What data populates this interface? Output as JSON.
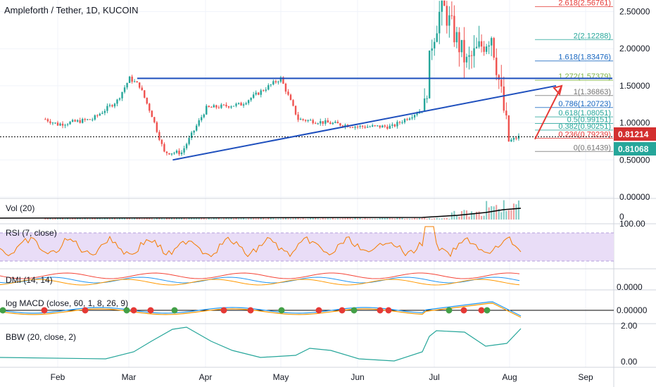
{
  "header": {
    "title": "Ampleforth / Tether, 1D, KUCOIN"
  },
  "colors": {
    "up": "#26a69a",
    "down": "#ef5350",
    "trendline": "#1e4fbd",
    "arrow": "#e53935",
    "price_badge_red": "#d32f2f",
    "price_badge_green": "#26a69a",
    "rsi_band": "#e9ddf7",
    "rsi_line": "#f57c00",
    "macd_line": "#2196f3",
    "signal_line": "#ff9800",
    "bbw_line": "#26a69a",
    "vol_ma": "#000000",
    "dmi_plus": "#2196f3",
    "dmi_minus": "#ff9800",
    "adx": "#f44336"
  },
  "price_badges": {
    "red": "0.81214",
    "green": "0.81068"
  },
  "chart_data": [
    {
      "type": "candlestick",
      "title": "Ampleforth / Tether, 1D, KUCOIN",
      "y_axis_ticks": [
        "2.50000",
        "2.00000",
        "1.50000",
        "1.00000",
        "0.50000",
        "0.00000"
      ],
      "ylim": [
        0.0,
        2.6
      ],
      "x_axis_ticks": [
        "Feb",
        "Mar",
        "Apr",
        "May",
        "Jun",
        "Jul",
        "Aug",
        "Sep"
      ],
      "series_points_approx": [
        {
          "t": "Jan 15",
          "close": 1.05
        },
        {
          "t": "Feb 1",
          "close": 0.98
        },
        {
          "t": "Feb 15",
          "close": 1.05
        },
        {
          "t": "Feb 25",
          "close": 1.3
        },
        {
          "t": "Mar 1",
          "close": 1.6
        },
        {
          "t": "Mar 5",
          "close": 1.5
        },
        {
          "t": "Mar 10",
          "close": 1.1
        },
        {
          "t": "Mar 15",
          "close": 0.6
        },
        {
          "t": "Mar 22",
          "close": 0.6
        },
        {
          "t": "Apr 1",
          "close": 1.2
        },
        {
          "t": "Apr 15",
          "close": 1.25
        },
        {
          "t": "May 1",
          "close": 1.6
        },
        {
          "t": "May 8",
          "close": 1.05
        },
        {
          "t": "May 20",
          "close": 1.0
        },
        {
          "t": "Jun 1",
          "close": 0.95
        },
        {
          "t": "Jun 15",
          "close": 0.95
        },
        {
          "t": "Jun 28",
          "close": 1.2
        },
        {
          "t": "Jul 1",
          "close": 2.1
        },
        {
          "t": "Jul 5",
          "close": 2.6
        },
        {
          "t": "Jul 15",
          "close": 1.8
        },
        {
          "t": "Jul 25",
          "close": 2.2
        },
        {
          "t": "Aug 1",
          "close": 0.75
        },
        {
          "t": "Aug 5",
          "close": 0.81
        }
      ],
      "fib_levels": [
        {
          "label": "2.618(2.56761)",
          "value": 2.56761
        },
        {
          "label": "2(2.12288)",
          "value": 2.12288
        },
        {
          "label": "1.618(1.83476)",
          "value": 1.83476
        },
        {
          "label": "1.272(1.57379)",
          "value": 1.57379
        },
        {
          "label": "1(1.36863)",
          "value": 1.36863
        },
        {
          "label": "0.786(1.20723)",
          "value": 1.20723
        },
        {
          "label": "0.618(1.08051)",
          "value": 1.08051
        },
        {
          "label": "0.5(0.99151)",
          "value": 0.99151
        },
        {
          "label": "0.382(0.90251)",
          "value": 0.90251
        },
        {
          "label": "0.236(0.79239)",
          "value": 0.79239
        },
        {
          "label": "0(0.61439)",
          "value": 0.61439
        }
      ],
      "annotations": {
        "resistance_line": 1.6,
        "ascending_trendline": [
          {
            "t": "Mar 15",
            "v": 0.5
          },
          {
            "t": "Aug 10",
            "v": 1.5
          }
        ],
        "arrow_target": 1.5
      }
    },
    {
      "type": "bar",
      "title": "Vol (20)",
      "y_axis_ticks": [
        "0"
      ],
      "note_values": "rising in late July"
    },
    {
      "type": "line",
      "title": "RSI (7, close)",
      "y_axis_ticks": [
        "100.00"
      ],
      "band": [
        30,
        70
      ]
    },
    {
      "type": "line",
      "title": "DMI (14, 14)",
      "y_axis_ticks": [
        "0.0000"
      ]
    },
    {
      "type": "line",
      "title": "log MACD (close, 60, 1, 8, 26, 9)",
      "y_axis_ticks": [
        "0.00000"
      ]
    },
    {
      "type": "line",
      "title": "BBW (20, close, 2)",
      "y_axis_ticks": [
        "2.00",
        "0.00"
      ]
    }
  ]
}
